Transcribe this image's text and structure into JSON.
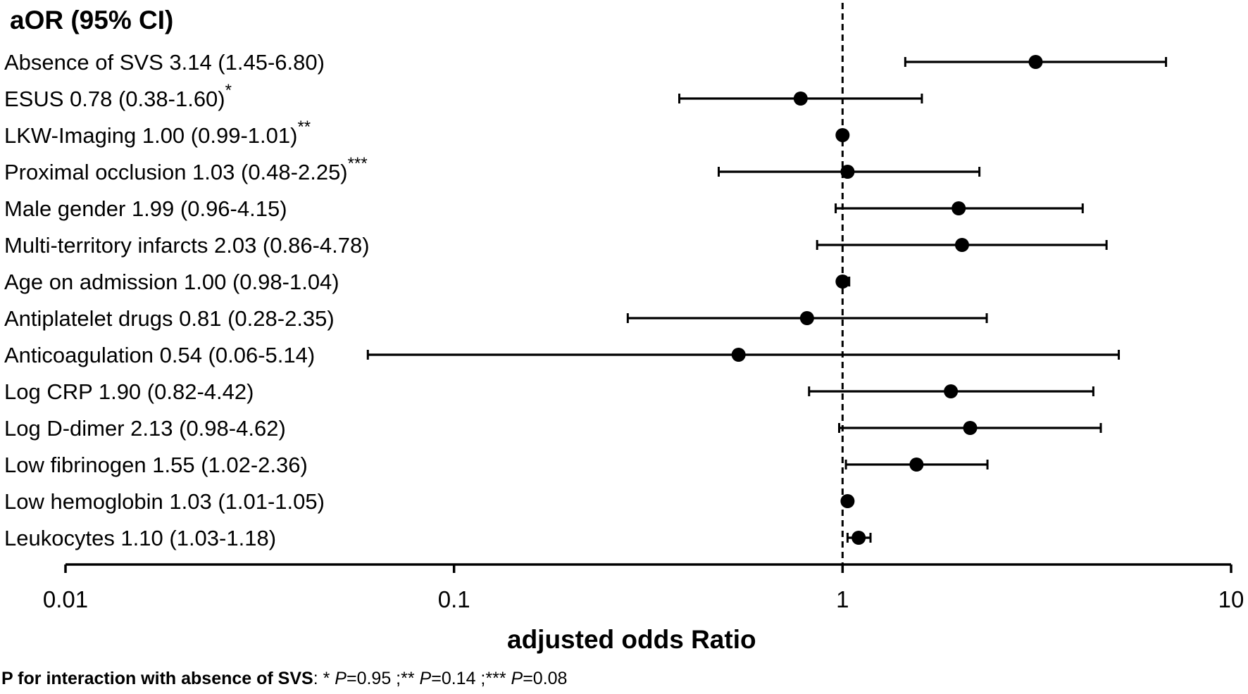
{
  "chart_data": {
    "type": "forest",
    "title": "aOR (95% CI)",
    "xlabel": "adjusted odds Ratio",
    "xscale": "log",
    "xlim": [
      0.01,
      10
    ],
    "xticks": [
      {
        "value": 0.01,
        "label": "0.01"
      },
      {
        "value": 0.1,
        "label": "0.1"
      },
      {
        "value": 1,
        "label": "1"
      },
      {
        "value": 10,
        "label": "10"
      }
    ],
    "reference_line": 1,
    "rows": [
      {
        "name": "Absence of SVS",
        "stat": "3.14 (1.45-6.80)",
        "marker": "",
        "or": 3.14,
        "lo": 1.45,
        "hi": 6.8
      },
      {
        "name": "ESUS",
        "stat": "0.78 (0.38-1.60)",
        "marker": "*",
        "or": 0.78,
        "lo": 0.38,
        "hi": 1.6
      },
      {
        "name": "LKW-Imaging",
        "stat": "1.00 (0.99-1.01)",
        "marker": "**",
        "or": 1.0,
        "lo": 0.99,
        "hi": 1.01
      },
      {
        "name": "Proximal occlusion",
        "stat": "1.03 (0.48-2.25)",
        "marker": "***",
        "or": 1.03,
        "lo": 0.48,
        "hi": 2.25
      },
      {
        "name": "Male gender",
        "stat": "1.99 (0.96-4.15)",
        "marker": "",
        "or": 1.99,
        "lo": 0.96,
        "hi": 4.15
      },
      {
        "name": "Multi-territory infarcts",
        "stat": "2.03 (0.86-4.78)",
        "marker": "",
        "or": 2.03,
        "lo": 0.86,
        "hi": 4.78
      },
      {
        "name": "Age on admission",
        "stat": "1.00 (0.98-1.04)",
        "marker": "",
        "or": 1.0,
        "lo": 0.98,
        "hi": 1.04
      },
      {
        "name": "Antiplatelet drugs",
        "stat": "0.81 (0.28-2.35)",
        "marker": "",
        "or": 0.81,
        "lo": 0.28,
        "hi": 2.35
      },
      {
        "name": "Anticoagulation",
        "stat": "0.54 (0.06-5.14)",
        "marker": "",
        "or": 0.54,
        "lo": 0.06,
        "hi": 5.14
      },
      {
        "name": "Log CRP",
        "stat": "1.90 (0.82-4.42)",
        "marker": "",
        "or": 1.9,
        "lo": 0.82,
        "hi": 4.42
      },
      {
        "name": "Log D-dimer",
        "stat": "2.13 (0.98-4.62)",
        "marker": "",
        "or": 2.13,
        "lo": 0.98,
        "hi": 4.62
      },
      {
        "name": "Low fibrinogen",
        "stat": "1.55 (1.02-2.36)",
        "marker": "",
        "or": 1.55,
        "lo": 1.02,
        "hi": 2.36
      },
      {
        "name": "Low hemoglobin",
        "stat": "1.03 (1.01-1.05)",
        "marker": "",
        "or": 1.03,
        "lo": 1.01,
        "hi": 1.05
      },
      {
        "name": "Leukocytes",
        "stat": "1.10 (1.03-1.18)",
        "marker": "",
        "or": 1.1,
        "lo": 1.03,
        "hi": 1.18
      }
    ]
  },
  "footnote": {
    "lead": "P for interaction with absence of SVS",
    "parts": [
      {
        "marker": ": * ",
        "p_label": "P",
        "value": "=0.95"
      },
      {
        "marker": " ;** ",
        "p_label": "P",
        "value": "=0.14"
      },
      {
        "marker": " ;*** ",
        "p_label": "P",
        "value": "=0.08"
      }
    ]
  }
}
